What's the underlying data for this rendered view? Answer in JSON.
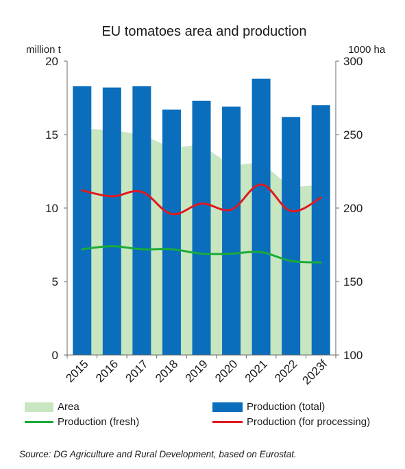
{
  "chart_data": {
    "type": "bar",
    "title": "EU tomatoes area and production",
    "ylabel_left": "million t",
    "ylabel_right": "1000 ha",
    "categories": [
      "2015",
      "2016",
      "2017",
      "2018",
      "2019",
      "2020",
      "2021",
      "2022",
      "2023f"
    ],
    "ylim_left": [
      0,
      20
    ],
    "yticks_left": [
      "0",
      "5",
      "10",
      "15",
      "20"
    ],
    "ylim_right": [
      100,
      300
    ],
    "yticks_right": [
      "100",
      "150",
      "200",
      "250",
      "300"
    ],
    "series": [
      {
        "name": "Area",
        "type": "area",
        "axis": "right",
        "color": "#c8e6c0",
        "values": [
          254,
          253,
          250,
          241,
          243,
          229,
          231,
          214,
          216
        ]
      },
      {
        "name": "Production (total)",
        "type": "bar",
        "axis": "left",
        "color": "#0a6ebd",
        "values": [
          18.3,
          18.2,
          18.3,
          16.7,
          17.3,
          16.9,
          18.8,
          16.2,
          17.0
        ]
      },
      {
        "name": "Production (fresh)",
        "type": "line",
        "axis": "left",
        "color": "#1aab3a",
        "values": [
          7.2,
          7.4,
          7.2,
          7.2,
          6.9,
          6.9,
          7.0,
          6.4,
          6.3
        ]
      },
      {
        "name": "Production (for processing)",
        "type": "line",
        "axis": "left",
        "color": "#e0191e",
        "values": [
          11.2,
          10.8,
          11.1,
          9.6,
          10.3,
          9.9,
          11.6,
          9.8,
          10.7
        ]
      }
    ],
    "grid": false,
    "legend_position": "bottom"
  },
  "source": "Source: DG Agriculture and Rural Development, based on Eurostat."
}
